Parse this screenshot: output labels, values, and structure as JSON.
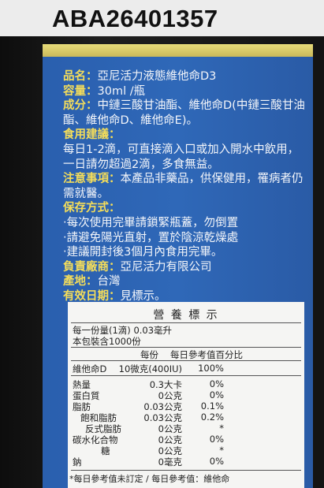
{
  "header": {
    "code": "ABA26401357"
  },
  "label": {
    "items": [
      {
        "label": "品名：",
        "text": "亞尼活力液態維他命D3"
      },
      {
        "label": "容量：",
        "text": "30ml /瓶"
      },
      {
        "label": "成分：",
        "text": "中鏈三酸甘油酯、維他命D(中鏈三酸甘油酯、維他命D、維他命E)。"
      },
      {
        "label": "食用建議：",
        "text": ""
      },
      {
        "label": "",
        "text": "每日1-2滴，可直接滴入口或加入開水中飲用，一日請勿超過2滴，多食無益。"
      },
      {
        "label": "注意事項：",
        "text": "本產品非藥品，供保健用，罹病者仍需就醫。"
      },
      {
        "label": "保存方式：",
        "text": ""
      },
      {
        "label": "",
        "text": "‧每次使用完畢請鎖緊瓶蓋，勿倒置"
      },
      {
        "label": "",
        "text": "‧請避免陽光直射，置於陰涼乾燥處"
      },
      {
        "label": "",
        "text": "‧建議開封後3個月內食用完畢。"
      },
      {
        "label": "負責廠商：",
        "text": "亞尼活力有限公司"
      },
      {
        "label": "產地：",
        "text": "台灣"
      },
      {
        "label": "有效日期：",
        "text": "見標示。"
      }
    ]
  },
  "nutrition": {
    "title": "營 養 標 示",
    "serving_size": "每一份量(1滴) 0.03毫升",
    "servings": "本包裝含1000份",
    "columns": [
      "每份",
      "每日參考值百分比"
    ],
    "rows": [
      [
        "維他命D",
        "10微克(400IU)",
        "100%"
      ],
      [
        "熱量",
        "0.3大卡",
        "0%"
      ],
      [
        "蛋白質",
        "0公克",
        "0%"
      ],
      [
        "脂肪",
        "0.03公克",
        "0.1%"
      ],
      [
        "飽和脂肪",
        "0.03公克",
        "0.2%"
      ],
      [
        "反式脂肪",
        "0公克",
        "*"
      ],
      [
        "碳水化合物",
        "0公克",
        "0%"
      ],
      [
        "糖",
        "0公克",
        "*"
      ],
      [
        "鈉",
        "0毫克",
        "0%"
      ]
    ],
    "footnote": "*每日參考值未訂定 / 每日參考值：維他命"
  }
}
